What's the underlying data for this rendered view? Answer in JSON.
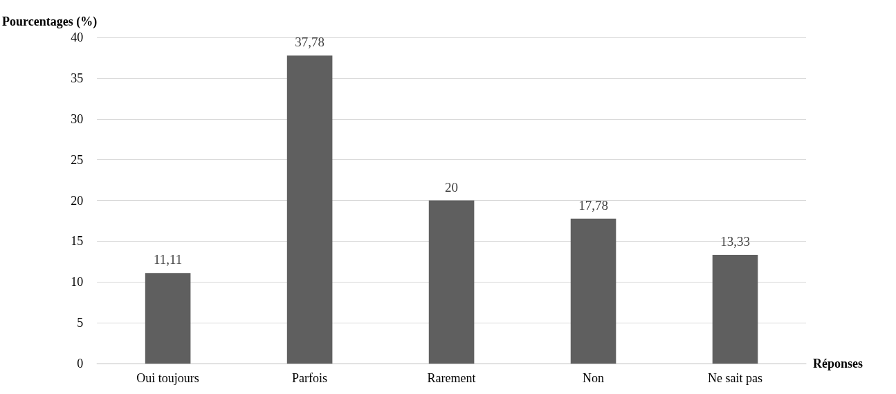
{
  "chart_data": {
    "type": "bar",
    "xlabel": "Réponses",
    "ylabel": "Pourcentages (%)",
    "categories": [
      "Oui toujours",
      "Parfois",
      "Rarement",
      "Non",
      "Ne sait pas"
    ],
    "values": [
      11.11,
      37.78,
      20,
      17.78,
      13.33
    ],
    "value_labels": [
      "11,11",
      "37,78",
      "20",
      "17,78",
      "13,33"
    ],
    "color": "#5f5f5f",
    "ylim": [
      0,
      40
    ],
    "yticks": [
      0,
      5,
      10,
      15,
      20,
      25,
      30,
      35,
      40
    ],
    "grid": "y"
  }
}
